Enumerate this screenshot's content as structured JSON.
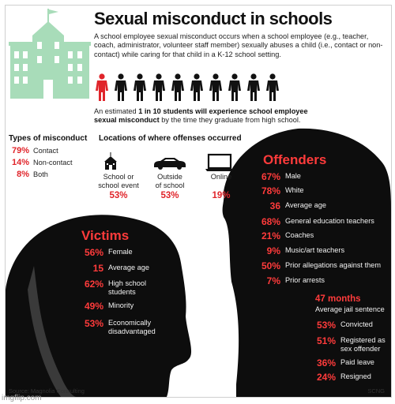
{
  "title": "Sexual misconduct in schools",
  "intro": "A school employee sexual misconduct occurs when a school employee (e.g., teacher, coach, administrator, volunteer staff member) sexually abuses a child (i.e., contact or non-contact) while caring for that child in a K-12 school setting.",
  "estimate": {
    "prefix": "An estimated ",
    "bold1": "1 in 10 students will experience school employee",
    "bold2": "sexual misconduct",
    "suffix": " by the time they graduate from high school."
  },
  "types": {
    "heading": "Types of misconduct",
    "items": [
      {
        "value": "79%",
        "label": "Contact"
      },
      {
        "value": "14%",
        "label": "Non-contact"
      },
      {
        "value": "8%",
        "label": "Both"
      }
    ]
  },
  "locations": {
    "heading": "Locations of where offenses occurred",
    "items": [
      {
        "label1": "School or",
        "label2": "school event",
        "value": "53%",
        "icon": "school-bus-icon"
      },
      {
        "label1": "Outside",
        "label2": "of school",
        "value": "53%",
        "icon": "car-icon"
      },
      {
        "label1": "Online",
        "label2": "",
        "value": "19%",
        "icon": "laptop-icon"
      }
    ]
  },
  "victims": {
    "heading": "Victims",
    "items": [
      {
        "value": "56%",
        "label": "Female"
      },
      {
        "value": "15",
        "label": "Average age"
      },
      {
        "value": "62%",
        "label": "High school students"
      },
      {
        "value": "49%",
        "label": "Minority"
      },
      {
        "value": "53%",
        "label": "Economically disadvantaged"
      }
    ]
  },
  "offenders": {
    "heading": "Offenders",
    "items": [
      {
        "value": "67%",
        "label": "Male"
      },
      {
        "value": "78%",
        "label": "White"
      },
      {
        "value": "36",
        "label": "Average age"
      },
      {
        "value": "68%",
        "label": "General education teachers"
      },
      {
        "value": "21%",
        "label": "Coaches"
      },
      {
        "value": "9%",
        "label": "Music/art teachers"
      },
      {
        "value": "50%",
        "label": "Prior allegations against them"
      },
      {
        "value": "7%",
        "label": "Prior arrests"
      }
    ],
    "jail_value": "47 months",
    "jail_label": "Average jail sentence",
    "outcomes": [
      {
        "value": "53%",
        "label": "Convicted"
      },
      {
        "value": "51%",
        "label": "Registered as sex offender"
      },
      {
        "value": "36%",
        "label": "Paid leave"
      },
      {
        "value": "24%",
        "label": "Resigned"
      }
    ]
  },
  "source": "Source: Magnolia Consulting",
  "credit": "SCNG",
  "watermark": "imgflip.com",
  "people": {
    "total": 10,
    "highlighted": 1
  },
  "colors": {
    "accent": "#e0242a",
    "building": "#a8dcb9",
    "silhouette": "#0d0d0d",
    "people": "#111111"
  }
}
